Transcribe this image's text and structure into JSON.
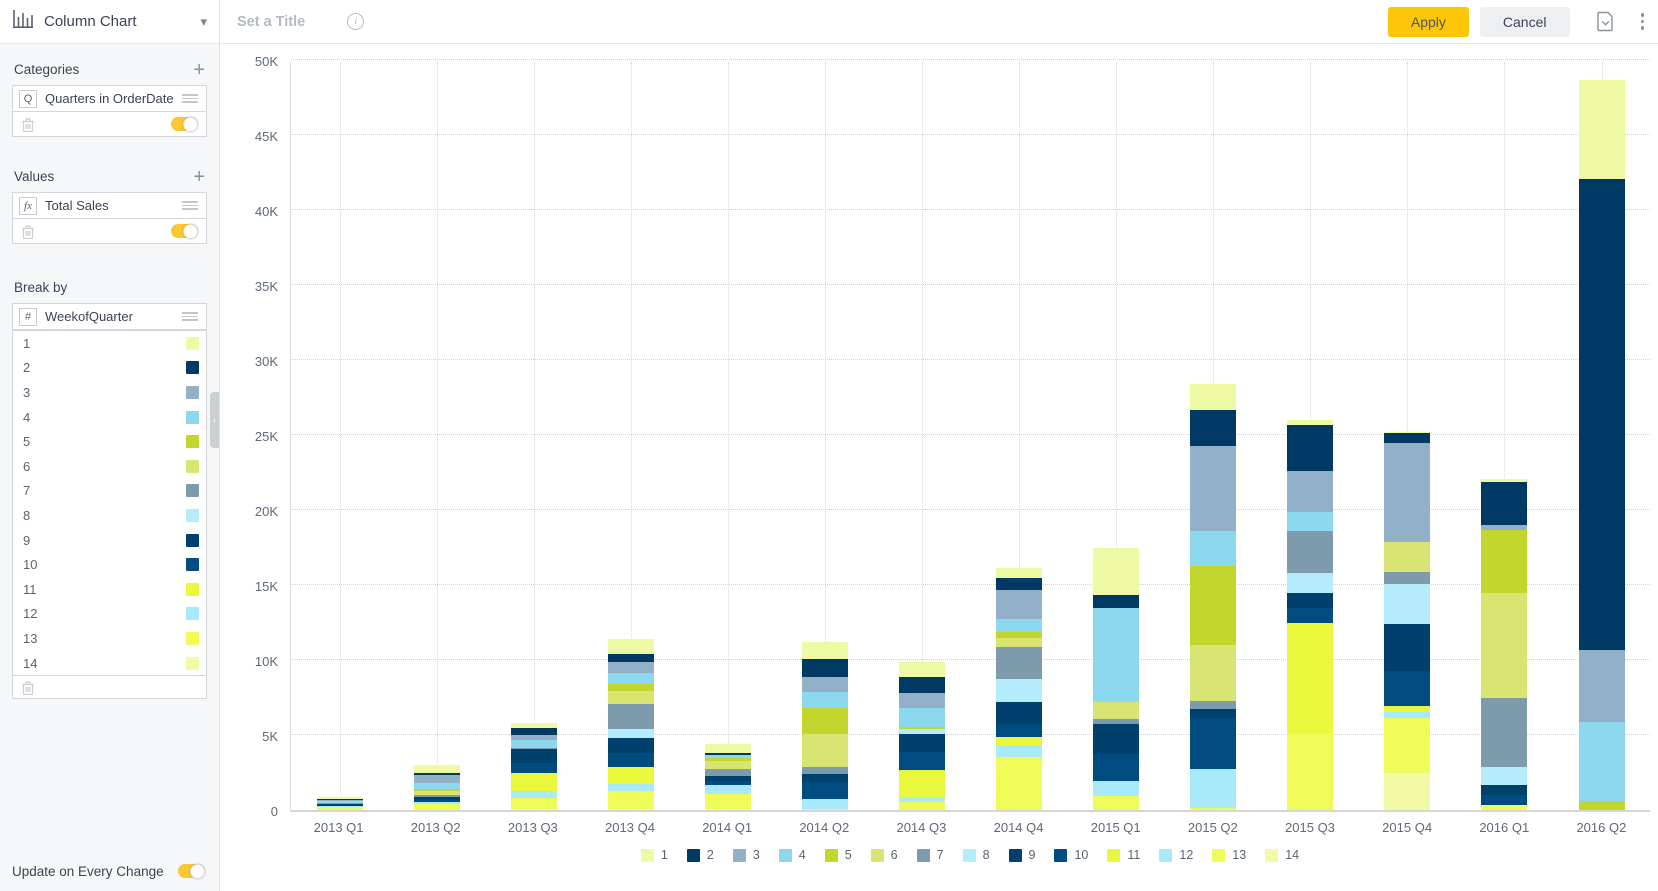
{
  "sidebar": {
    "chart_type": "Column Chart",
    "categories": {
      "label": "Categories",
      "badge": "Q",
      "field": "Quarters in OrderDate"
    },
    "values": {
      "label": "Values",
      "badge": "fx",
      "field": "Total Sales"
    },
    "break_by": {
      "label": "Break by",
      "badge": "#",
      "field": "WeekofQuarter"
    },
    "update_label": "Update on Every Change"
  },
  "topbar": {
    "title_placeholder": "Set a Title",
    "apply_label": "Apply",
    "cancel_label": "Cancel"
  },
  "colors": {
    "accent_yellow": "#fdc608",
    "toggle_on": "#fbc733"
  },
  "chart_data": {
    "type": "bar",
    "stacked": true,
    "title": "",
    "xlabel": "",
    "ylabel": "",
    "ylim": [
      0,
      50000
    ],
    "ytick_labels": [
      "0",
      "5K",
      "10K",
      "15K",
      "20K",
      "25K",
      "30K",
      "35K",
      "40K",
      "45K",
      "50K"
    ],
    "grid": true,
    "legend_position": "bottom",
    "categories": [
      "2013 Q1",
      "2013 Q2",
      "2013 Q3",
      "2013 Q4",
      "2014 Q1",
      "2014 Q2",
      "2014 Q3",
      "2014 Q4",
      "2015 Q1",
      "2015 Q2",
      "2015 Q3",
      "2015 Q4",
      "2016 Q1",
      "2016 Q2"
    ],
    "values_unit": "K",
    "stack_order_note": "series 1 renders at top of each column, series 14 at bottom",
    "series": [
      {
        "name": "1",
        "color": "#edf9a3",
        "values": [
          0.1,
          0.5,
          0.35,
          1.0,
          0.6,
          1.15,
          0.95,
          0.7,
          3.15,
          1.7,
          0.3,
          0.05,
          0.2,
          6.6
        ]
      },
      {
        "name": "2",
        "color": "#003a64",
        "values": [
          0.05,
          0.15,
          0.45,
          0.55,
          0.1,
          1.15,
          1.1,
          0.75,
          0.85,
          2.45,
          3.1,
          0.7,
          2.9,
          31.4
        ]
      },
      {
        "name": "3",
        "color": "#92b1c8",
        "values": [
          0.1,
          0.55,
          0.35,
          0.7,
          0.0,
          1.0,
          1.0,
          1.95,
          0.0,
          5.65,
          2.75,
          6.6,
          0.35,
          4.8
        ]
      },
      {
        "name": "4",
        "color": "#8cd8ee",
        "values": [
          0.1,
          0.4,
          0.5,
          0.75,
          0.2,
          1.1,
          1.25,
          0.85,
          6.3,
          2.35,
          1.25,
          0.0,
          0.0,
          5.3
        ]
      },
      {
        "name": "5",
        "color": "#c3d62e",
        "values": [
          0.0,
          0.15,
          0.0,
          0.45,
          0.2,
          1.7,
          0.15,
          0.4,
          0.0,
          5.25,
          0.0,
          0.0,
          4.15,
          0.6
        ]
      },
      {
        "name": "6",
        "color": "#d9e573",
        "values": [
          0.0,
          0.25,
          0.0,
          0.9,
          0.55,
          2.2,
          0.0,
          0.65,
          1.1,
          3.75,
          0.0,
          1.95,
          7.0,
          0.0
        ]
      },
      {
        "name": "7",
        "color": "#7e9aad",
        "values": [
          0.1,
          0.15,
          0.1,
          1.65,
          0.45,
          0.5,
          0.0,
          2.1,
          0.35,
          0.5,
          2.8,
          0.8,
          4.6,
          0.0
        ]
      },
      {
        "name": "8",
        "color": "#b5ecfb",
        "values": [
          0.0,
          0.0,
          0.0,
          0.6,
          0.0,
          0.0,
          0.3,
          1.55,
          0.0,
          0.0,
          1.35,
          2.7,
          1.25,
          0.0
        ]
      },
      {
        "name": "9",
        "color": "#00406d",
        "values": [
          0.1,
          0.2,
          0.9,
          1.0,
          0.35,
          0.55,
          1.2,
          1.45,
          2.0,
          0.6,
          1.0,
          3.1,
          0.65,
          0.0
        ]
      },
      {
        "name": "10",
        "color": "#004b80",
        "values": [
          0.0,
          0.1,
          0.7,
          0.95,
          0.3,
          1.1,
          1.2,
          0.85,
          1.8,
          3.4,
          1.0,
          2.35,
          0.65,
          0.0
        ]
      },
      {
        "name": "11",
        "color": "#e9f83d",
        "values": [
          0.0,
          0.0,
          1.2,
          1.1,
          0.0,
          0.0,
          1.85,
          0.55,
          0.0,
          0.0,
          7.3,
          0.4,
          0.0,
          0.0
        ]
      },
      {
        "name": "12",
        "color": "#a9eafa",
        "values": [
          0.1,
          0.15,
          0.45,
          0.5,
          0.55,
          0.65,
          0.3,
          0.8,
          1.0,
          2.6,
          0.0,
          0.4,
          0.0,
          0.0
        ]
      },
      {
        "name": "13",
        "color": "#effb58",
        "values": [
          0.2,
          0.4,
          0.75,
          1.2,
          1.0,
          0.1,
          0.55,
          3.55,
          0.95,
          0.15,
          5.15,
          3.7,
          0.35,
          0.0
        ]
      },
      {
        "name": "14",
        "color": "#f2faa6",
        "values": [
          0.0,
          0.0,
          0.05,
          0.05,
          0.1,
          0.0,
          0.0,
          0.0,
          0.0,
          0.0,
          0.0,
          2.45,
          0.0,
          0.0
        ]
      }
    ]
  }
}
